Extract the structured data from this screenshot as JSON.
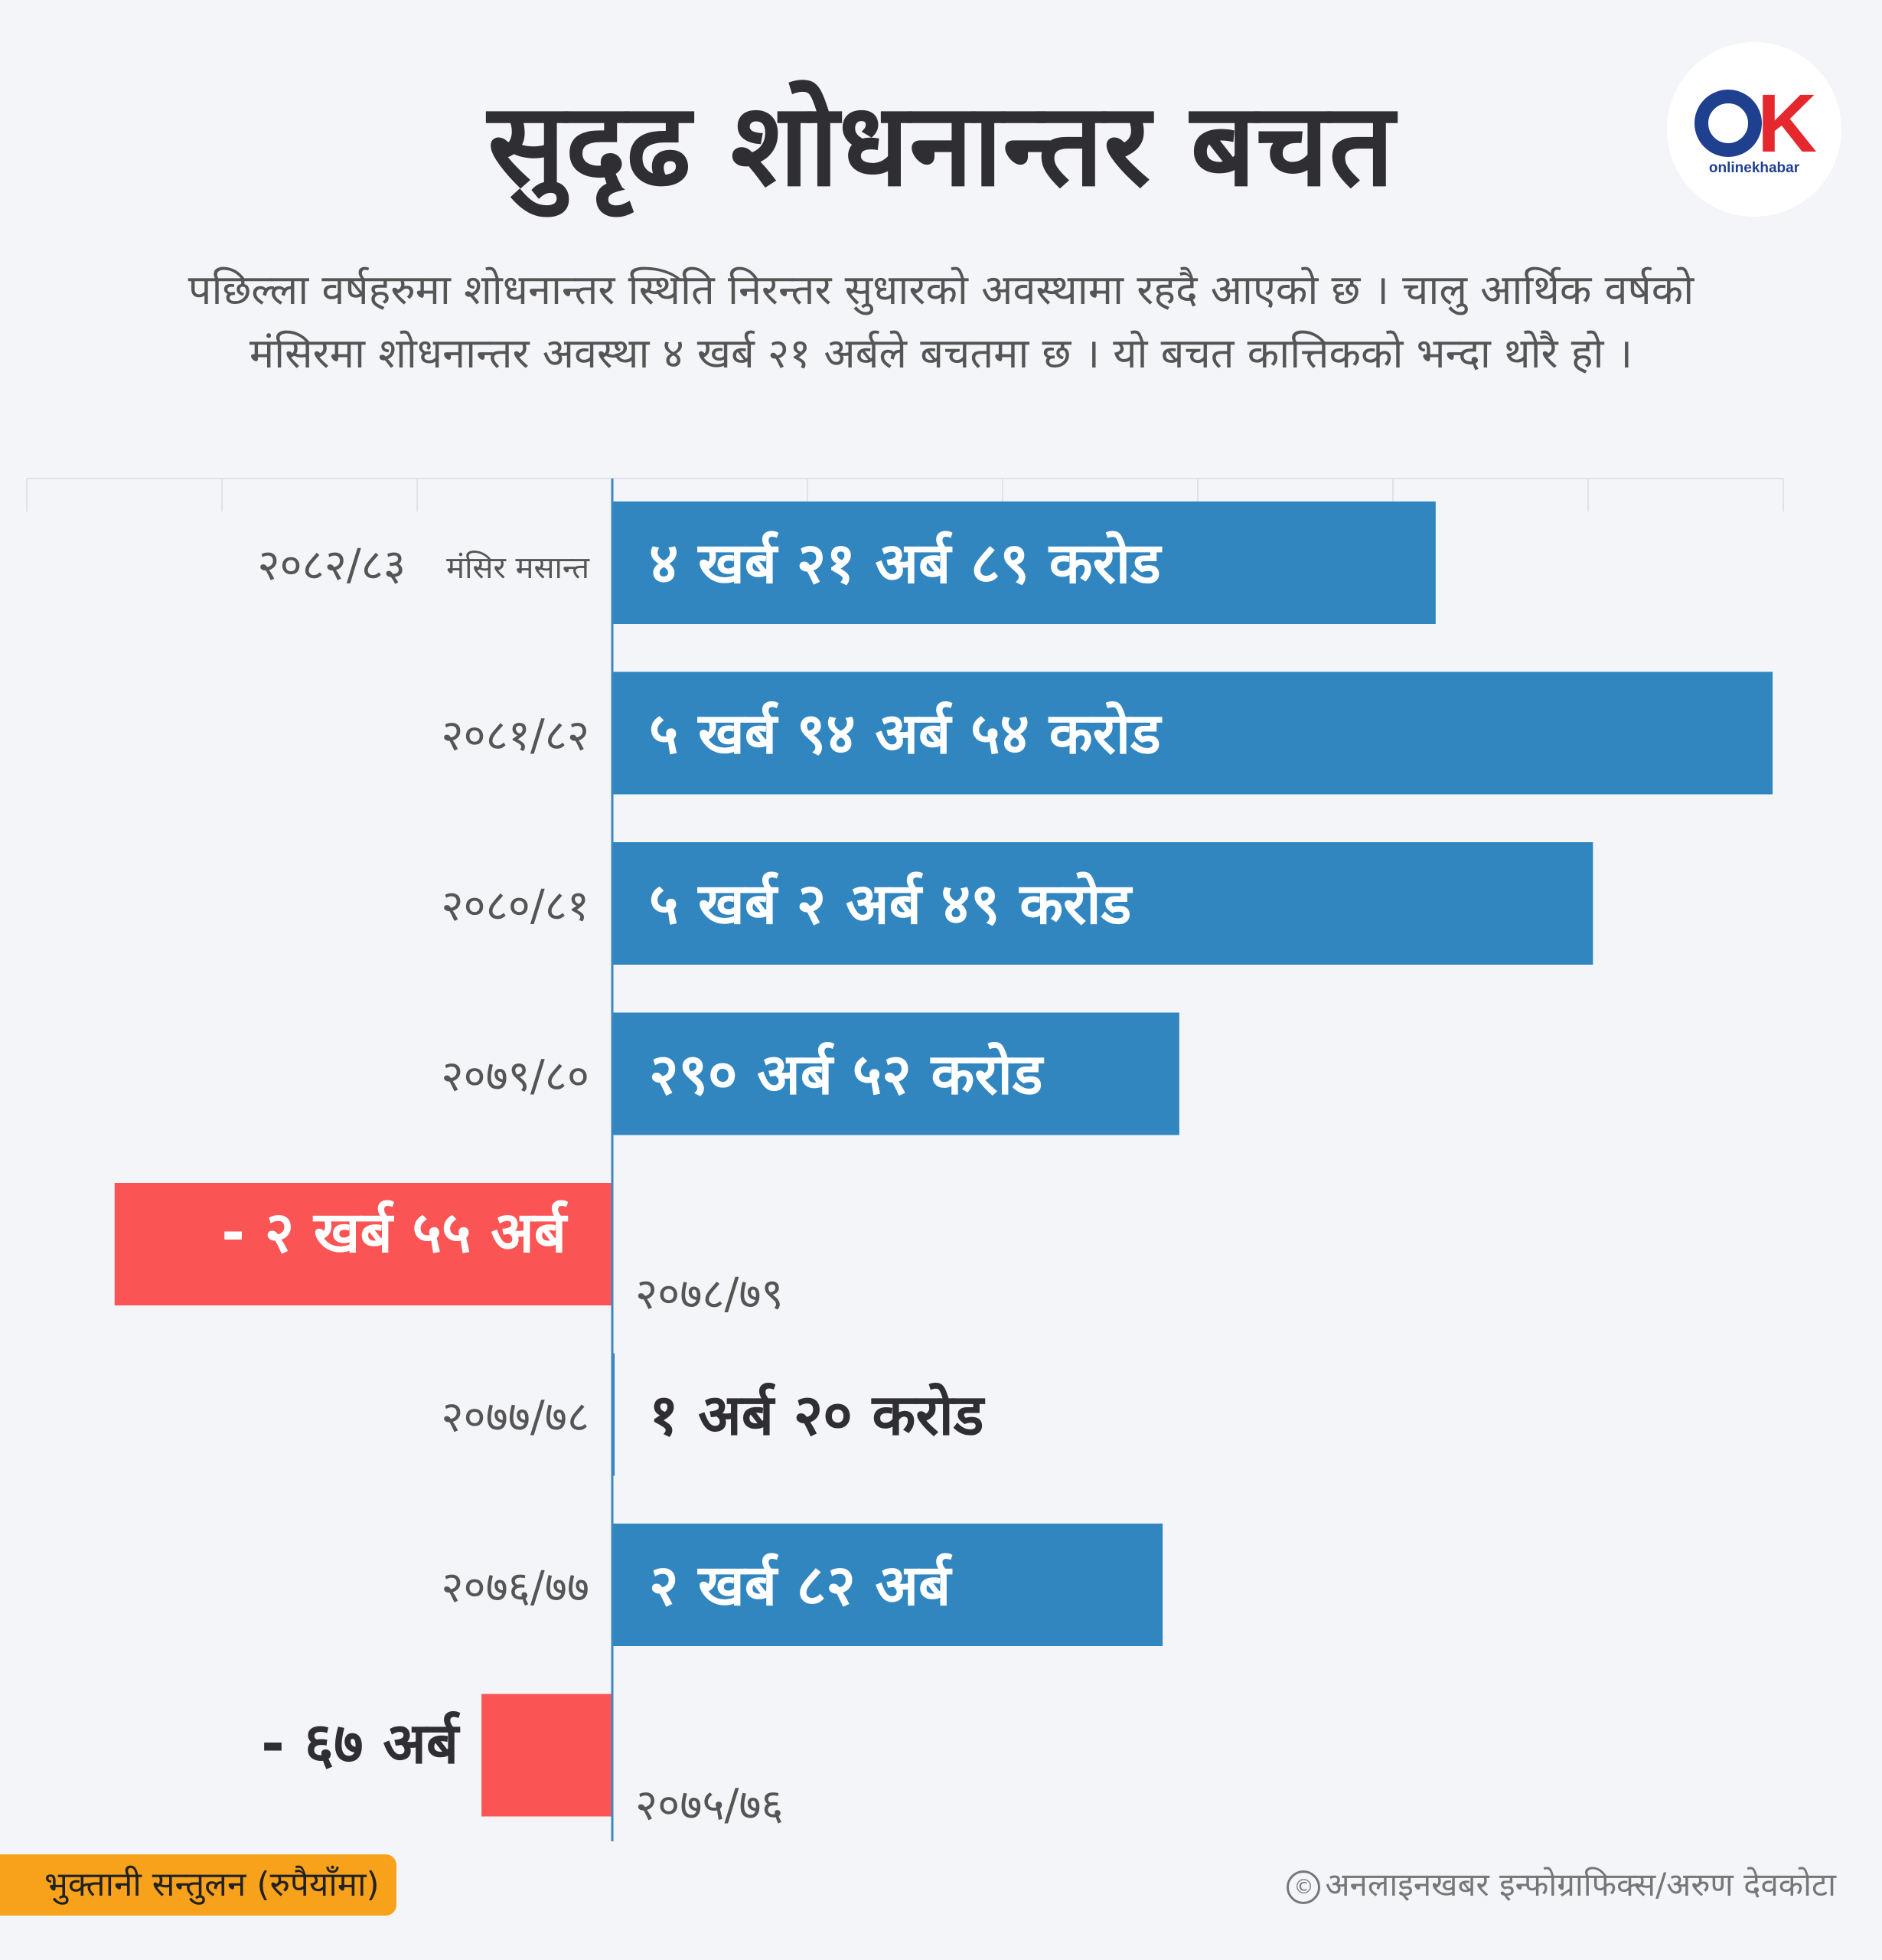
{
  "title": "सुदृढ शोधनान्तर बचत",
  "subtitle_lines": [
    "पछिल्ला वर्षहरुमा शोधनान्तर स्थिति निरन्तर सुधारको अवस्थामा रहदै आएको छ । चालु आर्थिक वर्षको",
    "मंसिरमा शोधनान्तर अवस्था ४ खर्ब २१ अर्बले बचतमा छ । यो बचत कात्तिकको भन्दा थोरै हो ।"
  ],
  "logo": {
    "symbol": "OK",
    "text": "onlinekhabar"
  },
  "colors": {
    "positive": "#3286c0",
    "negative": "#fb5454",
    "background": "#f4f5f9",
    "badge": "#f8a21c"
  },
  "chart_data": {
    "type": "bar",
    "orientation": "horizontal",
    "title": "सुदृढ शोधनान्तर बचत",
    "xlabel": "भुक्तानी सन्तुलन (रुपैयाँमा)",
    "unit": "अर्ब",
    "xlim": [
      -300,
      600
    ],
    "grid": true,
    "categories": [
      "२०८२/८३",
      "२०८१/८२",
      "२०८०/८१",
      "२०७९/८०",
      "२०७८/७९",
      "२०७७/७८",
      "२०७६/७७",
      "२०७५/७६"
    ],
    "category_notes": [
      "मंसिर  मसान्त",
      "",
      "",
      "",
      "",
      "",
      "",
      ""
    ],
    "values": [
      421.89,
      594.54,
      502.49,
      290.52,
      -255,
      1.2,
      282,
      -67
    ],
    "value_labels": [
      "४ खर्ब २१ अर्ब ८९ करोड",
      "५ खर्ब ९४ अर्ब ५४ करोड",
      "५ खर्ब २ अर्ब ४९ करोड",
      "२९० अर्ब ५२ करोड",
      "- २ खर्ब ५५ अर्ब",
      "१ अर्ब २० करोड",
      "२ खर्ब ८२ अर्ब",
      "- ६७ अर्ब"
    ]
  },
  "source_badge": "भुक्तानी सन्तुलन (रुपैयाँमा)",
  "credit": {
    "icon": "©",
    "text": "अनलाइनखबर इन्फोग्राफिक्स/अरुण देवकोटा"
  }
}
